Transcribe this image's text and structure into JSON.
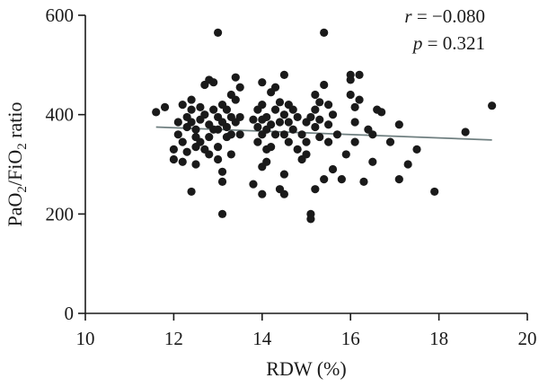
{
  "chart_data": {
    "type": "scatter",
    "xlabel": "RDW (%)",
    "ylabel": {
      "pre": "PaO",
      "sub1": "2",
      "mid": "/FiO",
      "sub2": "2",
      "post": " ratio"
    },
    "xlim": [
      10,
      20
    ],
    "ylim": [
      0,
      600
    ],
    "xticks": [
      10,
      12,
      14,
      16,
      18,
      20
    ],
    "yticks": [
      0,
      200,
      400,
      600
    ],
    "grid": false,
    "annotations": {
      "r_symbol": "r",
      "r_value": " = −0.080",
      "p_symbol": "p",
      "p_value": " = 0.321"
    },
    "regression": {
      "x": [
        11.6,
        19.2
      ],
      "y": [
        375,
        349
      ]
    },
    "colors": {
      "points": "#1a1a1a",
      "regression": "#6f7f80",
      "axes": "#1a1a1a"
    },
    "points": {
      "x": [
        11.6,
        11.8,
        12.0,
        12.0,
        12.1,
        12.1,
        12.2,
        12.2,
        12.2,
        12.3,
        12.3,
        12.3,
        12.4,
        12.4,
        12.4,
        12.4,
        12.5,
        12.5,
        12.5,
        12.5,
        12.6,
        12.6,
        12.6,
        12.7,
        12.7,
        12.7,
        12.8,
        12.8,
        12.8,
        12.8,
        12.9,
        12.9,
        12.9,
        13.0,
        13.0,
        13.0,
        13.0,
        13.0,
        13.1,
        13.1,
        13.1,
        13.1,
        13.1,
        13.2,
        13.2,
        13.2,
        13.3,
        13.3,
        13.3,
        13.3,
        13.4,
        13.4,
        13.4,
        13.5,
        13.5,
        13.5,
        13.8,
        13.8,
        13.9,
        13.9,
        13.9,
        14.0,
        14.0,
        14.0,
        14.0,
        14.0,
        14.0,
        14.1,
        14.1,
        14.1,
        14.1,
        14.2,
        14.2,
        14.2,
        14.3,
        14.3,
        14.3,
        14.4,
        14.4,
        14.4,
        14.5,
        14.5,
        14.5,
        14.5,
        14.5,
        14.6,
        14.6,
        14.6,
        14.7,
        14.7,
        14.8,
        14.8,
        14.9,
        14.9,
        15.0,
        15.0,
        15.0,
        15.1,
        15.1,
        15.1,
        15.2,
        15.2,
        15.2,
        15.2,
        15.3,
        15.3,
        15.3,
        15.4,
        15.4,
        15.4,
        15.5,
        15.5,
        15.5,
        15.6,
        15.6,
        15.7,
        15.8,
        15.9,
        16.0,
        16.0,
        16.0,
        16.1,
        16.1,
        16.1,
        16.2,
        16.2,
        16.3,
        16.4,
        16.5,
        16.5,
        16.6,
        16.7,
        16.9,
        17.1,
        17.1,
        17.3,
        17.5,
        17.9,
        18.6,
        19.2
      ],
      "y": [
        405,
        415,
        330,
        310,
        385,
        360,
        420,
        345,
        305,
        395,
        375,
        325,
        430,
        410,
        385,
        245,
        370,
        355,
        335,
        300,
        415,
        390,
        345,
        460,
        400,
        330,
        470,
        380,
        355,
        320,
        465,
        410,
        370,
        565,
        395,
        370,
        335,
        310,
        420,
        385,
        285,
        265,
        200,
        410,
        375,
        355,
        440,
        395,
        360,
        320,
        475,
        430,
        385,
        455,
        395,
        360,
        390,
        260,
        410,
        375,
        345,
        465,
        420,
        390,
        360,
        295,
        240,
        395,
        370,
        330,
        305,
        445,
        380,
        335,
        455,
        410,
        360,
        425,
        385,
        250,
        480,
        400,
        360,
        280,
        240,
        420,
        385,
        345,
        410,
        370,
        395,
        330,
        360,
        310,
        385,
        345,
        320,
        395,
        200,
        190,
        440,
        410,
        375,
        250,
        425,
        390,
        355,
        565,
        460,
        270,
        420,
        380,
        345,
        400,
        290,
        360,
        270,
        320,
        480,
        470,
        440,
        415,
        385,
        345,
        480,
        430,
        265,
        370,
        305,
        360,
        410,
        405,
        345,
        380,
        270,
        300,
        330,
        245,
        365,
        418
      ]
    }
  }
}
